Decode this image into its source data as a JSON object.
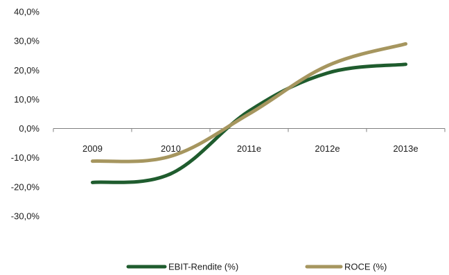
{
  "chart_data": {
    "type": "line",
    "title": "",
    "xlabel": "",
    "ylabel": "",
    "categories": [
      "2009",
      "2010",
      "2011e",
      "2012e",
      "2013e"
    ],
    "ylim": [
      -40,
      40
    ],
    "y_ticks": [
      "40,0%",
      "30,0%",
      "20,0%",
      "10,0%",
      "0,0%",
      "-10,0%",
      "-20,0%",
      "-30,0%"
    ],
    "y_tick_values": [
      40,
      30,
      20,
      10,
      0,
      -10,
      -20,
      -30
    ],
    "grid": false,
    "legend_position": "bottom",
    "series": [
      {
        "name": "EBIT-Rendite (%)",
        "values": [
          -18.5,
          -15.5,
          6.0,
          19.0,
          22.0
        ],
        "color": "#1f5c2e"
      },
      {
        "name": "ROCE (%)",
        "values": [
          -11.2,
          -9.5,
          5.0,
          21.5,
          29.0
        ],
        "color": "#a6965f"
      }
    ]
  }
}
